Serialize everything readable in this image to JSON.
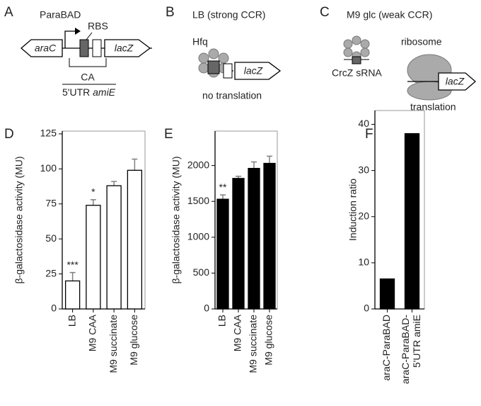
{
  "diagrams": {
    "A": {
      "letter": "A",
      "promoter": "ParaBAD",
      "rbs": "RBS",
      "gene1": "araC",
      "gene2": "lacZ",
      "region": "CA",
      "utr": "5'UTR",
      "utr_gene": "amiE"
    },
    "B": {
      "letter": "B",
      "title": "LB (strong CCR)",
      "protein": "Hfq",
      "gene": "lacZ",
      "caption": "no translation"
    },
    "C": {
      "letter": "C",
      "title": "M9 glc (weak CCR)",
      "srna": "CrcZ sRNA",
      "ribosome": "ribosome",
      "gene": "lacZ",
      "caption": "translation"
    }
  },
  "chart_data": [
    {
      "type": "bar",
      "panel": "D",
      "ylabel": "β-galactosidase activity (MU)",
      "categories": [
        "LB",
        "M9 CAA",
        "M9 succinate",
        "M9 glucose"
      ],
      "values": [
        20,
        74,
        88,
        99
      ],
      "errors": [
        6,
        4,
        3,
        8
      ],
      "significance": [
        "***",
        "*",
        null,
        null
      ],
      "color": "#ffffff",
      "edgecolor": "#000000",
      "error_color": "#808080",
      "ylim": [
        0,
        127
      ],
      "yticks": [
        0,
        25,
        50,
        75,
        100,
        125
      ]
    },
    {
      "type": "bar",
      "panel": "E",
      "ylabel": "β-galactosidase activity (MU)",
      "categories": [
        "LB",
        "M9 CAA",
        "M9 succinate",
        "M9 glucose"
      ],
      "values": [
        1530,
        1820,
        1960,
        2030
      ],
      "errors": [
        60,
        30,
        90,
        100
      ],
      "significance": [
        "**",
        null,
        null,
        null
      ],
      "color": "#000000",
      "edgecolor": "#000000",
      "error_color": "#808080",
      "ylim": [
        0,
        2480
      ],
      "yticks": [
        0,
        500,
        1000,
        1500,
        2000
      ]
    },
    {
      "type": "bar",
      "panel": "F",
      "ylabel": "Induction ratio",
      "categories": [
        [
          "araC-ParaBAD"
        ],
        [
          "araC-ParaBAD-",
          "5'UTR amiE"
        ]
      ],
      "values": [
        6.5,
        38
      ],
      "color": "#000000",
      "edgecolor": "#000000",
      "ylim": [
        0,
        43
      ],
      "yticks": [
        0,
        10,
        20,
        30,
        40
      ]
    }
  ]
}
